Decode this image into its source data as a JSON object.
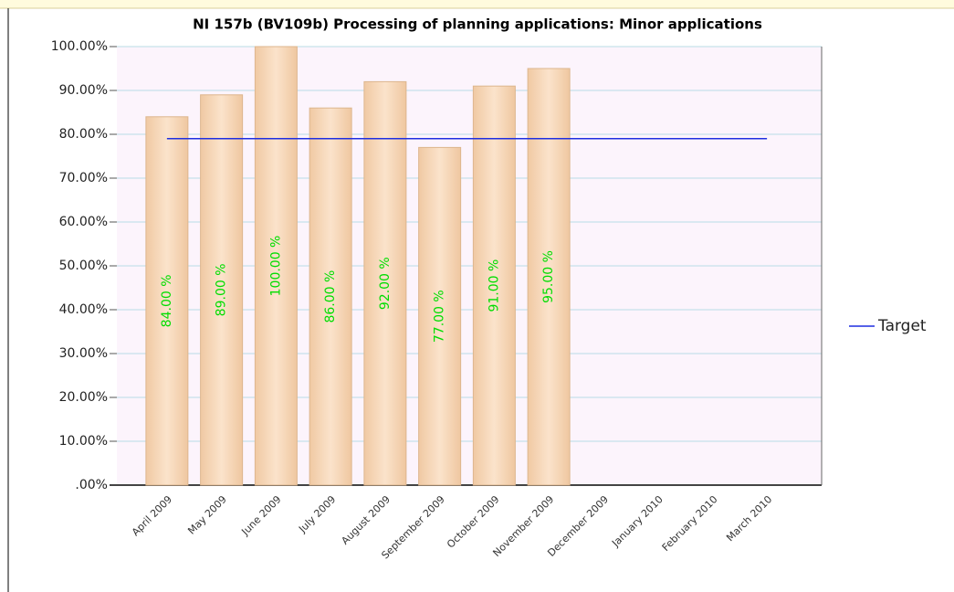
{
  "chart_data": {
    "type": "bar",
    "title": "NI 157b (BV109b) Processing of planning applications: Minor applications",
    "categories": [
      "April 2009",
      "May 2009",
      "June 2009",
      "July 2009",
      "August 2009",
      "September 2009",
      "October 2009",
      "November 2009",
      "December 2009",
      "January 2010",
      "February 2010",
      "March 2010"
    ],
    "values": [
      84,
      89,
      100,
      86,
      92,
      77,
      91,
      95,
      null,
      null,
      null,
      null
    ],
    "value_labels": [
      "84.00 %",
      "89.00 %",
      "100.00 %",
      "86.00 %",
      "92.00 %",
      "77.00 %",
      "91.00 %",
      "95.00 %",
      null,
      null,
      null,
      null
    ],
    "color": "#f5d5b4",
    "series": [
      {
        "name": "Target",
        "color": "#1f2fe0",
        "values": [
          79,
          79,
          79,
          79,
          79,
          79,
          79,
          79,
          79,
          79,
          79,
          79
        ]
      }
    ],
    "ylim": [
      0,
      100
    ],
    "yticks": [
      {
        "value": 0,
        "label": ".00%"
      },
      {
        "value": 10,
        "label": "10.00%"
      },
      {
        "value": 20,
        "label": "20.00%"
      },
      {
        "value": 30,
        "label": "30.00%"
      },
      {
        "value": 40,
        "label": "40.00%"
      },
      {
        "value": 50,
        "label": "50.00%"
      },
      {
        "value": 60,
        "label": "60.00%"
      },
      {
        "value": 70,
        "label": "70.00%"
      },
      {
        "value": 80,
        "label": "80.00%"
      },
      {
        "value": 90,
        "label": "90.00%"
      },
      {
        "value": 100,
        "label": "100.00%"
      }
    ],
    "grid": true,
    "legend": "right"
  }
}
